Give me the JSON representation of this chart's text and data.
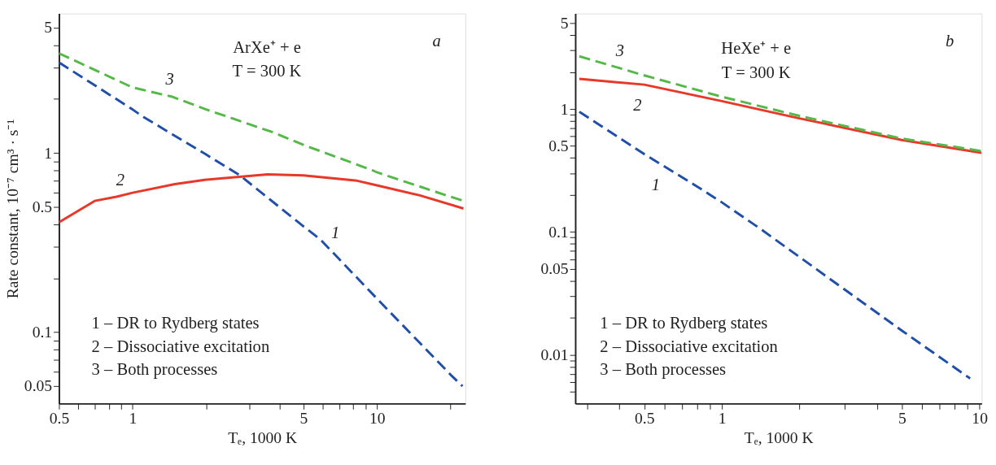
{
  "chart_data": [
    {
      "type": "line",
      "xlabel": "Tₑ, 1000 K",
      "ylabel": "Rate constant, 10⁻⁷ cm³ · s⁻¹",
      "log": "xy",
      "xlim": [
        0.5,
        23
      ],
      "ylim": [
        0.04,
        6
      ],
      "grid": false,
      "legend": false,
      "marker": "none",
      "xticks": [
        0.5,
        {
          "value": 0.6,
          "label": null
        },
        {
          "value": 0.7,
          "label": null
        },
        {
          "value": 0.8,
          "label": null
        },
        {
          "value": 0.9,
          "label": null
        },
        1,
        {
          "value": 2,
          "label": null
        },
        {
          "value": 3,
          "label": null
        },
        {
          "value": 4,
          "label": null
        },
        5,
        {
          "value": 6,
          "label": null
        },
        {
          "value": 7,
          "label": null
        },
        {
          "value": 8,
          "label": null
        },
        {
          "value": 9,
          "label": null
        },
        10,
        {
          "value": 20,
          "label": null
        }
      ],
      "yticks": [
        0.05,
        {
          "value": 0.06,
          "label": null
        },
        {
          "value": 0.07,
          "label": null
        },
        {
          "value": 0.08,
          "label": null
        },
        {
          "value": 0.09,
          "label": null
        },
        0.1,
        {
          "value": 0.2,
          "label": null
        },
        {
          "value": 0.3,
          "label": null
        },
        {
          "value": 0.4,
          "label": null
        },
        0.5,
        {
          "value": 0.6,
          "label": null
        },
        {
          "value": 0.7,
          "label": null
        },
        {
          "value": 0.8,
          "label": null
        },
        {
          "value": 0.9,
          "label": null
        },
        1,
        {
          "value": 2,
          "label": null
        },
        {
          "value": 3,
          "label": null
        },
        {
          "value": 4,
          "label": null
        },
        5
      ],
      "series": [
        {
          "color": "#1f4fa8",
          "line_style": "dashed",
          "x": [
            0.5,
            1,
            1.09,
            2,
            2.75,
            5,
            5.86,
            10,
            20,
            22.4
          ],
          "values": [
            3.2,
            1.75,
            1.61,
            0.98,
            0.75,
            0.39,
            0.33,
            0.154,
            0.058,
            0.05
          ]
        },
        {
          "color": "#e8382a",
          "line_style": "solid",
          "x": [
            0.5,
            0.7,
            0.86,
            1,
            1.49,
            2,
            3.57,
            5,
            8.3,
            10,
            15,
            22.6
          ],
          "values": [
            0.41,
            0.54,
            0.57,
            0.6,
            0.67,
            0.71,
            0.76,
            0.75,
            0.7,
            0.66,
            0.58,
            0.49
          ]
        },
        {
          "color": "#55b848",
          "line_style": "dashed",
          "x": [
            0.5,
            1,
            1.45,
            2,
            3.78,
            5,
            9.6,
            10,
            20,
            22.6
          ],
          "values": [
            3.6,
            2.32,
            2.06,
            1.75,
            1.3,
            1.11,
            0.8,
            0.78,
            0.57,
            0.54
          ]
        }
      ],
      "annotations": [
        "ArXe⁺ + e",
        "T = 300 K",
        "a",
        "1 – DR to Rydberg states",
        "2 – Dissociative excitation",
        "3 – Both processes",
        "1",
        "2",
        "3"
      ]
    },
    {
      "type": "line",
      "xlabel": "Tₑ, 1000 K",
      "log": "xy",
      "xlim": [
        0.27,
        10.2
      ],
      "ylim": [
        0.004,
        6
      ],
      "grid": false,
      "legend": false,
      "marker": "none",
      "xticks": [
        {
          "value": 0.3,
          "label": null
        },
        {
          "value": 0.4,
          "label": null
        },
        0.5,
        {
          "value": 0.6,
          "label": null
        },
        {
          "value": 0.7,
          "label": null
        },
        {
          "value": 0.8,
          "label": null
        },
        {
          "value": 0.9,
          "label": null
        },
        1,
        {
          "value": 2,
          "label": null
        },
        {
          "value": 3,
          "label": null
        },
        {
          "value": 4,
          "label": null
        },
        5,
        {
          "value": 6,
          "label": null
        },
        {
          "value": 7,
          "label": null
        },
        {
          "value": 8,
          "label": null
        },
        {
          "value": 9,
          "label": null
        },
        10
      ],
      "yticks": [
        {
          "value": 0.005,
          "label": null
        },
        {
          "value": 0.006,
          "label": null
        },
        {
          "value": 0.007,
          "label": null
        },
        {
          "value": 0.008,
          "label": null
        },
        {
          "value": 0.009,
          "label": null
        },
        0.01,
        {
          "value": 0.02,
          "label": null
        },
        {
          "value": 0.03,
          "label": null
        },
        {
          "value": 0.04,
          "label": null
        },
        0.05,
        {
          "value": 0.06,
          "label": null
        },
        {
          "value": 0.07,
          "label": null
        },
        {
          "value": 0.08,
          "label": null
        },
        {
          "value": 0.09,
          "label": null
        },
        0.1,
        {
          "value": 0.2,
          "label": null
        },
        {
          "value": 0.3,
          "label": null
        },
        {
          "value": 0.4,
          "label": null
        },
        0.5,
        {
          "value": 0.6,
          "label": null
        },
        {
          "value": 0.7,
          "label": null
        },
        {
          "value": 0.8,
          "label": null
        },
        {
          "value": 0.9,
          "label": null
        },
        1,
        {
          "value": 2,
          "label": null
        },
        {
          "value": 3,
          "label": null
        },
        {
          "value": 4,
          "label": null
        },
        5
      ],
      "series": [
        {
          "color": "#1f4fa8",
          "line_style": "dashed",
          "x": [
            0.28,
            0.5,
            0.77,
            1,
            1.42,
            2,
            5,
            9.2
          ],
          "values": [
            0.95,
            0.43,
            0.247,
            0.174,
            0.105,
            0.0625,
            0.0157,
            0.0064
          ]
        },
        {
          "color": "#e8382a",
          "line_style": "solid",
          "x": [
            0.28,
            0.5,
            1,
            2,
            5,
            10.2
          ],
          "values": [
            1.76,
            1.58,
            1.16,
            0.84,
            0.56,
            0.44
          ]
        },
        {
          "color": "#55b848",
          "line_style": "dashed",
          "x": [
            0.28,
            0.5,
            1,
            2,
            5,
            10.2
          ],
          "values": [
            2.69,
            1.88,
            1.26,
            0.88,
            0.575,
            0.455
          ]
        }
      ],
      "annotations": [
        "HeXe⁺ + e",
        "T = 300 K",
        "b",
        "1 – DR to Rydberg states",
        "2 – Dissociative excitation",
        "3 – Both processes",
        "1",
        "2",
        "3"
      ]
    }
  ]
}
